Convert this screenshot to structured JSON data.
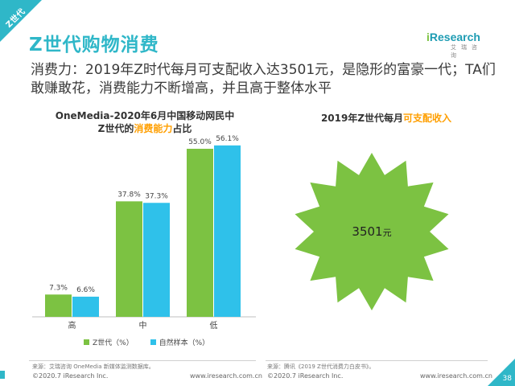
{
  "slide": {
    "corner_tag": "Z世代",
    "title": "Z世代购物消费",
    "subtitle": "消费力：2019年Z时代每月可支配收入达3501元，是隐形的富豪一代；TA们敢赚敢花，消费能力不断增高，并且高于整体水平",
    "logo_main_prefix": "i",
    "logo_main_rest": "Research",
    "logo_sub": "艾瑞咨询",
    "page_number": "38"
  },
  "left_chart": {
    "title_line1": "OneMedia-2020年6月中国移动网民中",
    "title_line2_pre": "Z世代的",
    "title_line2_hl": "消费能力",
    "title_line2_post": "占比",
    "source": "来源：艾瑞咨询 OneMedia 新媒体监测数据库。",
    "copyright": "©2020.7 iResearch Inc.",
    "url": "www.iresearch.com.cn"
  },
  "right_panel": {
    "title_pre": "2019年Z世代每月",
    "title_hl": "可支配收入",
    "value": "3501",
    "unit": "元",
    "source": "来源：腾讯《2019 Z世代消费力白皮书》。",
    "copyright": "©2020.7 iResearch Inc.",
    "url": "www.iresearch.com.cn"
  },
  "colors": {
    "accent": "#2fb7c8",
    "green": "#7cc242",
    "cyan": "#2fc1ea",
    "orange": "#ff9f00",
    "star": "#7cc242"
  },
  "chart_data": {
    "type": "bar",
    "categories": [
      "高",
      "中",
      "低"
    ],
    "series": [
      {
        "name": "Z世代（%）",
        "values": [
          7.3,
          37.8,
          55.0
        ],
        "labels": [
          "7.3%",
          "37.8%",
          "55.0%"
        ]
      },
      {
        "name": "自然样本（%）",
        "values": [
          6.6,
          37.3,
          56.1
        ],
        "labels": [
          "6.6%",
          "37.3%",
          "56.1%"
        ]
      }
    ],
    "title": "OneMedia-2020年6月中国移动网民中Z世代的消费能力占比",
    "xlabel": "",
    "ylabel": "",
    "ylim": [
      0,
      60
    ],
    "grid": false,
    "legend": "bottom"
  }
}
